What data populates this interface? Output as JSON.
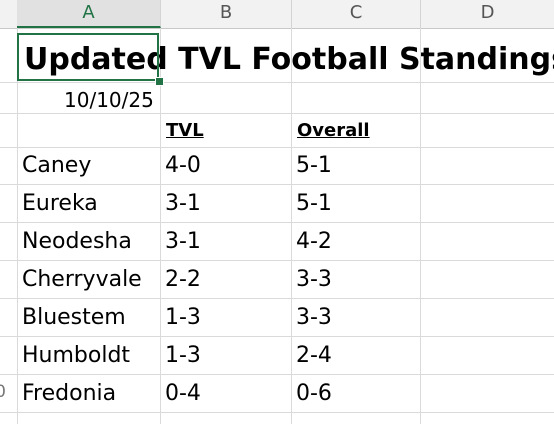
{
  "columns": [
    "A",
    "B",
    "C",
    "D"
  ],
  "title": "Updated TVL Football Standings",
  "date": "10/10/25",
  "headers": {
    "tvl": "TVL",
    "overall": "Overall"
  },
  "rows": [
    {
      "team": "Caney",
      "tvl": "4-0",
      "overall": "5-1"
    },
    {
      "team": "Eureka",
      "tvl": "3-1",
      "overall": "5-1"
    },
    {
      "team": "Neodesha",
      "tvl": "3-1",
      "overall": "4-2"
    },
    {
      "team": "Cherryvale",
      "tvl": "2-2",
      "overall": "3-3"
    },
    {
      "team": "Bluestem",
      "tvl": "1-3",
      "overall": "3-3"
    },
    {
      "team": "Humboldt",
      "tvl": "1-3",
      "overall": "2-4"
    },
    {
      "team": "Fredonia",
      "tvl": "0-4",
      "overall": "0-6"
    }
  ],
  "last_row_number_fragment": "0",
  "colors": {
    "selection": "#217346"
  }
}
